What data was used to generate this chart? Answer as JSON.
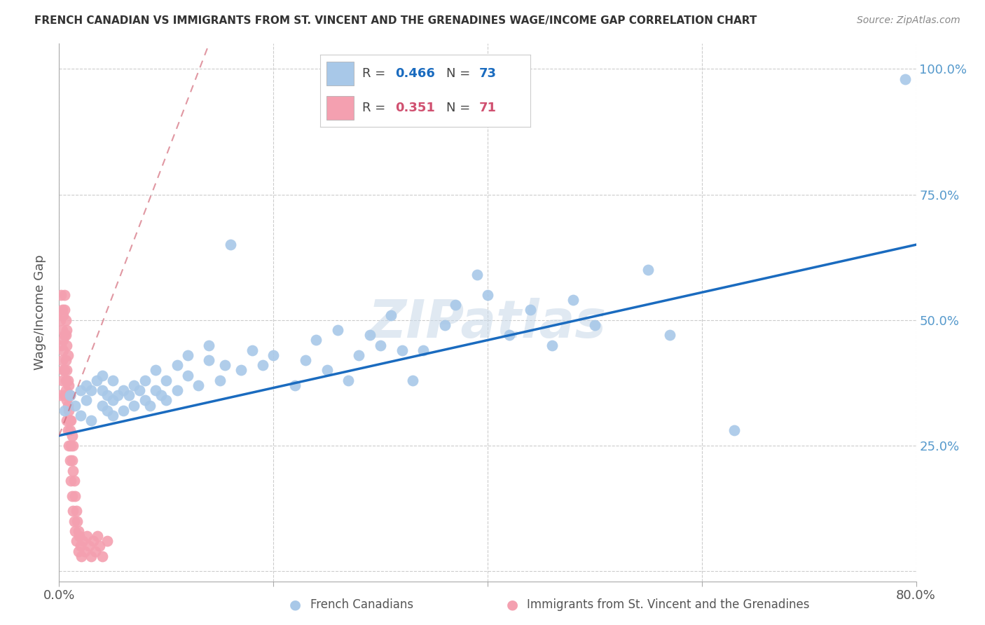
{
  "title": "FRENCH CANADIAN VS IMMIGRANTS FROM ST. VINCENT AND THE GRENADINES WAGE/INCOME GAP CORRELATION CHART",
  "source": "Source: ZipAtlas.com",
  "ylabel": "Wage/Income Gap",
  "xlim": [
    0.0,
    0.8
  ],
  "ylim": [
    -0.02,
    1.05
  ],
  "color_blue": "#a8c8e8",
  "color_pink": "#f4a0b0",
  "color_blue_line": "#1a6bbf",
  "color_pink_line": "#d06070",
  "color_text_blue": "#1a6bbf",
  "color_text_pink": "#d05070",
  "watermark": "ZIPatlas",
  "blue_line_x0": 0.0,
  "blue_line_y0": 0.27,
  "blue_line_x1": 0.8,
  "blue_line_y1": 0.65,
  "pink_line_x0": 0.0,
  "pink_line_y0": 0.27,
  "pink_line_x1": 0.14,
  "pink_line_y1": 1.05,
  "blue_points_x": [
    0.005,
    0.01,
    0.015,
    0.02,
    0.02,
    0.025,
    0.025,
    0.03,
    0.03,
    0.035,
    0.04,
    0.04,
    0.04,
    0.045,
    0.045,
    0.05,
    0.05,
    0.05,
    0.055,
    0.06,
    0.06,
    0.065,
    0.07,
    0.07,
    0.075,
    0.08,
    0.08,
    0.085,
    0.09,
    0.09,
    0.095,
    0.1,
    0.1,
    0.11,
    0.11,
    0.12,
    0.12,
    0.13,
    0.14,
    0.14,
    0.15,
    0.155,
    0.16,
    0.17,
    0.18,
    0.19,
    0.2,
    0.22,
    0.23,
    0.24,
    0.25,
    0.26,
    0.27,
    0.28,
    0.29,
    0.3,
    0.31,
    0.32,
    0.33,
    0.34,
    0.36,
    0.37,
    0.39,
    0.4,
    0.42,
    0.44,
    0.46,
    0.48,
    0.5,
    0.55,
    0.57,
    0.63,
    0.79
  ],
  "blue_points_y": [
    0.32,
    0.35,
    0.33,
    0.36,
    0.31,
    0.34,
    0.37,
    0.3,
    0.36,
    0.38,
    0.33,
    0.36,
    0.39,
    0.32,
    0.35,
    0.31,
    0.34,
    0.38,
    0.35,
    0.32,
    0.36,
    0.35,
    0.33,
    0.37,
    0.36,
    0.34,
    0.38,
    0.33,
    0.36,
    0.4,
    0.35,
    0.34,
    0.38,
    0.36,
    0.41,
    0.39,
    0.43,
    0.37,
    0.42,
    0.45,
    0.38,
    0.41,
    0.65,
    0.4,
    0.44,
    0.41,
    0.43,
    0.37,
    0.42,
    0.46,
    0.4,
    0.48,
    0.38,
    0.43,
    0.47,
    0.45,
    0.51,
    0.44,
    0.38,
    0.44,
    0.49,
    0.53,
    0.59,
    0.55,
    0.47,
    0.52,
    0.45,
    0.54,
    0.49,
    0.6,
    0.47,
    0.28,
    0.98
  ],
  "pink_points_x": [
    0.001,
    0.001,
    0.002,
    0.002,
    0.003,
    0.003,
    0.003,
    0.003,
    0.004,
    0.004,
    0.004,
    0.004,
    0.005,
    0.005,
    0.005,
    0.005,
    0.005,
    0.006,
    0.006,
    0.006,
    0.006,
    0.006,
    0.007,
    0.007,
    0.007,
    0.007,
    0.007,
    0.007,
    0.008,
    0.008,
    0.008,
    0.008,
    0.009,
    0.009,
    0.009,
    0.01,
    0.01,
    0.01,
    0.01,
    0.011,
    0.011,
    0.011,
    0.012,
    0.012,
    0.012,
    0.013,
    0.013,
    0.013,
    0.014,
    0.014,
    0.015,
    0.015,
    0.016,
    0.016,
    0.017,
    0.018,
    0.018,
    0.019,
    0.02,
    0.021,
    0.022,
    0.024,
    0.026,
    0.028,
    0.03,
    0.032,
    0.034,
    0.036,
    0.038,
    0.04,
    0.045
  ],
  "pink_points_y": [
    0.35,
    0.5,
    0.45,
    0.55,
    0.38,
    0.48,
    0.52,
    0.42,
    0.46,
    0.51,
    0.4,
    0.44,
    0.47,
    0.52,
    0.35,
    0.4,
    0.55,
    0.36,
    0.42,
    0.47,
    0.5,
    0.38,
    0.34,
    0.4,
    0.45,
    0.48,
    0.35,
    0.3,
    0.33,
    0.38,
    0.43,
    0.28,
    0.32,
    0.37,
    0.25,
    0.3,
    0.35,
    0.22,
    0.28,
    0.25,
    0.3,
    0.18,
    0.22,
    0.27,
    0.15,
    0.2,
    0.25,
    0.12,
    0.18,
    0.1,
    0.15,
    0.08,
    0.12,
    0.06,
    0.1,
    0.08,
    0.04,
    0.07,
    0.05,
    0.03,
    0.06,
    0.04,
    0.07,
    0.05,
    0.03,
    0.06,
    0.04,
    0.07,
    0.05,
    0.03,
    0.06
  ]
}
